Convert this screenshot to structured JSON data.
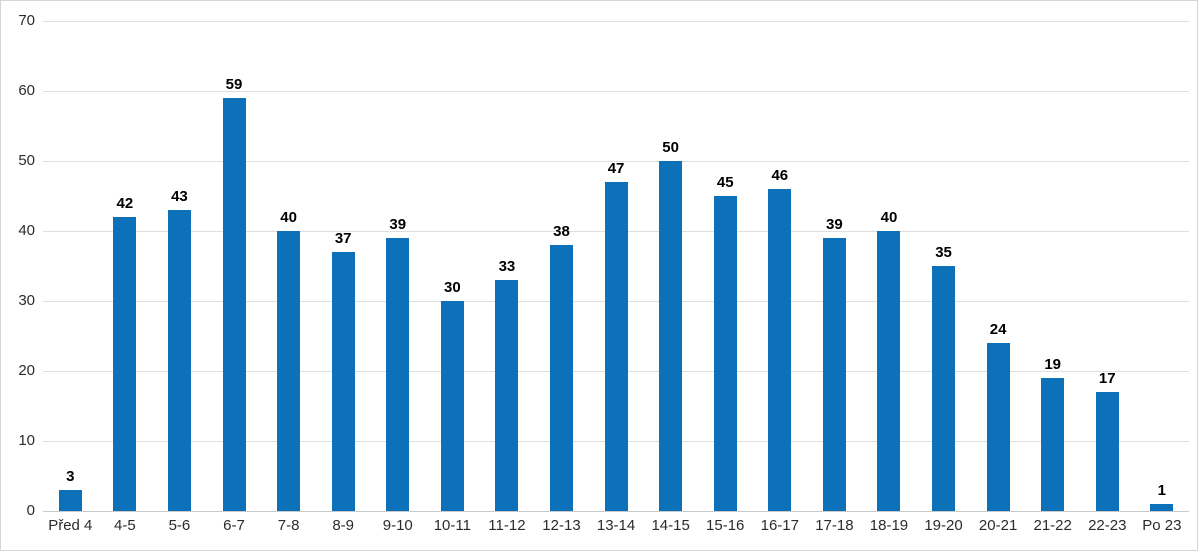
{
  "chart_data": {
    "type": "bar",
    "categories": [
      "Před 4",
      "4-5",
      "5-6",
      "6-7",
      "7-8",
      "8-9",
      "9-10",
      "10-11",
      "11-12",
      "12-13",
      "13-14",
      "14-15",
      "15-16",
      "16-17",
      "17-18",
      "18-19",
      "19-20",
      "20-21",
      "21-22",
      "22-23",
      "Po 23"
    ],
    "values": [
      3,
      42,
      43,
      59,
      40,
      37,
      39,
      30,
      33,
      38,
      47,
      50,
      45,
      46,
      39,
      40,
      35,
      24,
      19,
      17,
      1
    ],
    "title": "",
    "xlabel": "",
    "ylabel": "",
    "ylim": [
      0,
      70
    ],
    "yticks": [
      0,
      10,
      20,
      30,
      40,
      50,
      60,
      70
    ],
    "grid": true,
    "legend": "none",
    "data_labels": true,
    "bar_color": "#0d71ba",
    "gridline_color": "#dedede",
    "axis_label_color": "#2b2b2b",
    "data_label_color": "#000000"
  }
}
